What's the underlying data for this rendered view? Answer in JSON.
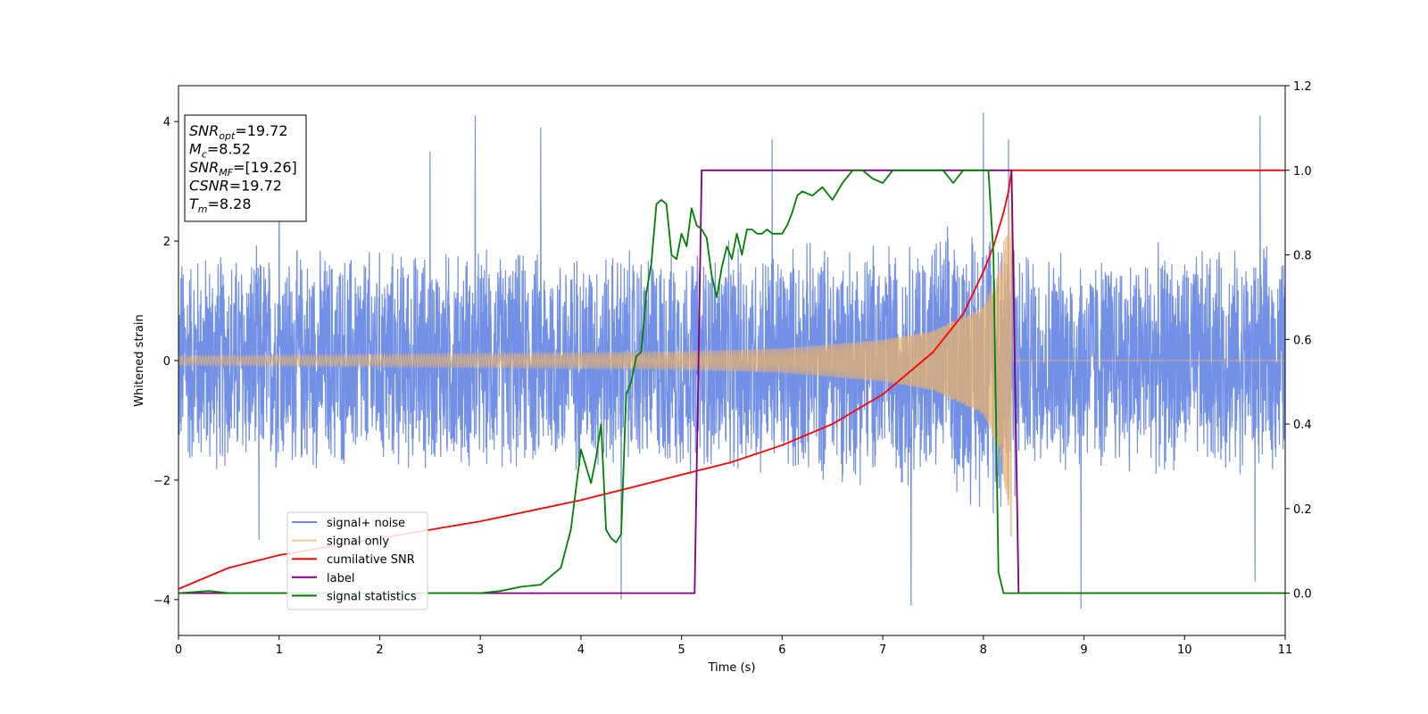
{
  "chart_data": {
    "type": "line",
    "xlabel": "Time (s)",
    "ylabel": "Whitened strain",
    "xlim": [
      0,
      11
    ],
    "ylim": [
      -4.6,
      4.6
    ],
    "y2lim": [
      -0.1,
      1.2
    ],
    "xticks": [
      "0",
      "1",
      "2",
      "3",
      "4",
      "5",
      "6",
      "7",
      "8",
      "9",
      "10",
      "11"
    ],
    "yticks": [
      "−4",
      "−2",
      "0",
      "2",
      "4"
    ],
    "y2ticks": [
      "0.0",
      "0.2",
      "0.4",
      "0.6",
      "0.8",
      "1.0",
      "1.2"
    ],
    "info_box": [
      {
        "base": "SNR",
        "sub": "opt",
        "rest": "=19.72"
      },
      {
        "base": "M",
        "sub": "c",
        "rest": "=8.52"
      },
      {
        "base": "SNR",
        "sub": "MF",
        "rest": "=[19.26]"
      },
      {
        "base": "CSNR",
        "sub": "",
        "rest": "=19.72"
      },
      {
        "base": "T",
        "sub": "m",
        "rest": "=8.28"
      }
    ],
    "legend_position": "lower-left",
    "series": [
      {
        "name": "signal+ noise",
        "axis": "left",
        "color": "#6b8ae6",
        "style": "noise band",
        "t_end": 11.0,
        "envelope": {
          "t": [
            0,
            2,
            4,
            5,
            6,
            7,
            7.5,
            8,
            8.2,
            8.28,
            8.35,
            11
          ],
          "amp": [
            2.0,
            2.0,
            2.0,
            2.05,
            2.1,
            2.2,
            2.3,
            2.6,
            2.9,
            3.0,
            2.0,
            2.0
          ]
        },
        "outlier_peaks": [
          {
            "t": 1.0,
            "v": 3.1
          },
          {
            "t": 2.5,
            "v": 3.5
          },
          {
            "t": 2.95,
            "v": 4.1
          },
          {
            "t": 3.6,
            "v": 3.9
          },
          {
            "t": 5.9,
            "v": 3.7
          },
          {
            "t": 8.0,
            "v": 4.15
          },
          {
            "t": 8.25,
            "v": 3.7
          },
          {
            "t": 10.75,
            "v": 4.1
          },
          {
            "t": 4.4,
            "v": -4.0
          },
          {
            "t": 7.28,
            "v": -4.1
          },
          {
            "t": 8.97,
            "v": -4.15
          },
          {
            "t": 0.8,
            "v": -3.0
          },
          {
            "t": 10.7,
            "v": -3.7
          }
        ]
      },
      {
        "name": "signal only",
        "axis": "left",
        "color": "#e8b36d",
        "style": "chirp",
        "t_merge": 8.28,
        "envelope": {
          "t": [
            0,
            2,
            4,
            5,
            6,
            7,
            7.5,
            8,
            8.15,
            8.25,
            8.28
          ],
          "amp": [
            0.08,
            0.1,
            0.13,
            0.15,
            0.2,
            0.35,
            0.5,
            0.9,
            1.5,
            2.5,
            3.1
          ]
        }
      },
      {
        "name": "cumilative SNR",
        "axis": "right",
        "color": "#ff0000",
        "x": [
          0,
          0.5,
          1,
          2,
          3,
          4,
          4.5,
          5,
          5.5,
          6,
          6.5,
          7,
          7.5,
          7.8,
          8.0,
          8.1,
          8.2,
          8.25,
          8.28,
          8.3,
          11
        ],
        "y": [
          0.01,
          0.06,
          0.09,
          0.13,
          0.17,
          0.22,
          0.25,
          0.28,
          0.31,
          0.35,
          0.4,
          0.47,
          0.57,
          0.66,
          0.76,
          0.82,
          0.9,
          0.95,
          1.0,
          1.0,
          1.0
        ]
      },
      {
        "name": "label",
        "axis": "right",
        "color": "#800080",
        "x": [
          0,
          5.13,
          5.2,
          8.28,
          8.35,
          11
        ],
        "y": [
          0,
          0,
          1,
          1,
          0,
          0
        ]
      },
      {
        "name": "signal statistics",
        "axis": "right",
        "color": "#008000",
        "x": [
          0,
          0.3,
          0.5,
          1,
          2,
          3,
          3.2,
          3.4,
          3.6,
          3.8,
          3.9,
          4.0,
          4.1,
          4.15,
          4.2,
          4.25,
          4.3,
          4.35,
          4.4,
          4.45,
          4.5,
          4.55,
          4.6,
          4.65,
          4.7,
          4.75,
          4.8,
          4.85,
          4.9,
          4.95,
          5.0,
          5.05,
          5.1,
          5.15,
          5.2,
          5.25,
          5.3,
          5.35,
          5.4,
          5.45,
          5.5,
          5.55,
          5.6,
          5.65,
          5.7,
          5.75,
          5.8,
          5.85,
          5.9,
          5.95,
          6.0,
          6.05,
          6.1,
          6.15,
          6.2,
          6.3,
          6.4,
          6.5,
          6.6,
          6.7,
          6.8,
          6.9,
          7.0,
          7.1,
          7.2,
          7.3,
          7.4,
          7.5,
          7.6,
          7.7,
          7.8,
          7.9,
          8.0,
          8.05,
          8.1,
          8.15,
          8.2,
          8.25,
          8.3,
          8.35,
          8.4,
          11
        ],
        "y": [
          0.0,
          0.005,
          0.0,
          0.0,
          0.0,
          0.0,
          0.005,
          0.015,
          0.02,
          0.06,
          0.15,
          0.34,
          0.26,
          0.32,
          0.4,
          0.15,
          0.13,
          0.12,
          0.14,
          0.47,
          0.5,
          0.56,
          0.57,
          0.71,
          0.78,
          0.92,
          0.93,
          0.92,
          0.8,
          0.79,
          0.85,
          0.82,
          0.91,
          0.87,
          0.86,
          0.84,
          0.75,
          0.7,
          0.77,
          0.82,
          0.79,
          0.85,
          0.8,
          0.86,
          0.86,
          0.85,
          0.85,
          0.86,
          0.85,
          0.85,
          0.85,
          0.87,
          0.9,
          0.94,
          0.95,
          0.94,
          0.96,
          0.93,
          0.97,
          1.0,
          1.0,
          0.98,
          0.97,
          1.0,
          1.0,
          1.0,
          1.0,
          1.0,
          1.0,
          0.97,
          1.0,
          1.0,
          1.0,
          1.0,
          0.8,
          0.05,
          0.0,
          0.0,
          0.0,
          0.0,
          0.0,
          0.0
        ]
      }
    ]
  }
}
